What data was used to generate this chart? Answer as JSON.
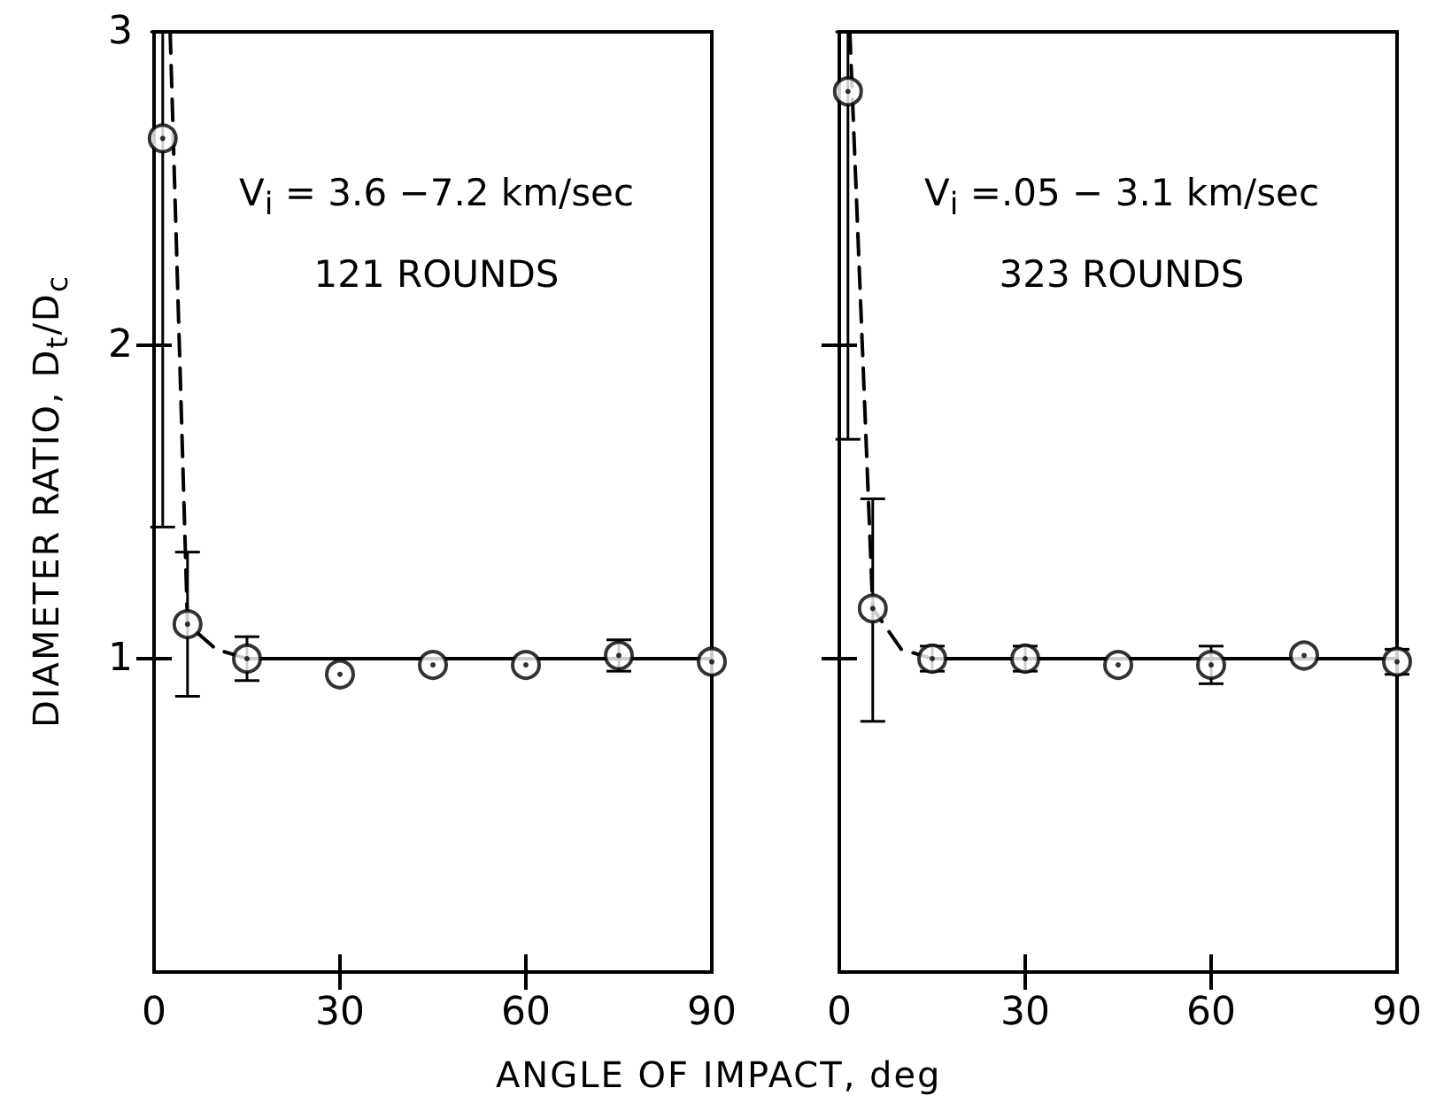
{
  "chart_data": [
    {
      "type": "scatter",
      "xlabel": "ANGLE OF IMPACT, deg",
      "ylabel": "DIAMETER RATIO, D$_{t}$/D$_{c}$",
      "annotations": [
        "V$_{i}$ = 3.6 −7.2 km/sec",
        "121 ROUNDS"
      ],
      "xlim": [
        0,
        90
      ],
      "xticks": [
        0,
        30,
        60,
        90
      ],
      "ylim": [
        0,
        3
      ],
      "yticks": [
        {
          "value": 0,
          "label": null
        },
        1,
        2,
        3
      ],
      "marker": "circle",
      "series": [
        {
          "type": "scatter",
          "color": "#000000",
          "x": [
            1.4,
            5.4,
            15,
            30,
            45,
            60,
            75,
            90
          ],
          "values": [
            2.66,
            1.11,
            1.0,
            0.95,
            0.98,
            0.98,
            1.01,
            0.99
          ],
          "errors": [
            [
              1.42,
              3
            ],
            [
              0.88,
              1.34
            ],
            [
              0.93,
              1.07
            ],
            null,
            null,
            null,
            [
              0.96,
              1.06
            ],
            null
          ]
        },
        {
          "type": "line",
          "line_style": "dashed",
          "color": "#000000",
          "x": [
            2.6,
            5.4,
            10,
            15
          ],
          "values": [
            3,
            1.11,
            1.03,
            1.0
          ]
        },
        {
          "type": "line",
          "line_style": "solid",
          "color": "#000000",
          "x": [
            15,
            90
          ],
          "values": [
            1.0,
            1.0
          ]
        }
      ]
    },
    {
      "type": "scatter",
      "annotations": [
        "V$_{i}$ =.05 − 3.1 km/sec",
        "323 ROUNDS"
      ],
      "xlim": [
        0,
        90
      ],
      "xticks": [
        0,
        30,
        60,
        90
      ],
      "ylim": [
        0,
        3
      ],
      "yticks": [
        {
          "value": 0,
          "label": null
        },
        1,
        2,
        3
      ],
      "marker": "circle",
      "tick_labels": "x",
      "series": [
        {
          "type": "scatter",
          "color": "#000000",
          "x": [
            1.4,
            5.4,
            15,
            30,
            45,
            60,
            75,
            90
          ],
          "values": [
            2.81,
            1.16,
            1.0,
            1.0,
            0.98,
            0.98,
            1.01,
            0.99
          ],
          "errors": [
            [
              1.7,
              3
            ],
            [
              0.8,
              1.51
            ],
            [
              0.96,
              1.04
            ],
            [
              0.96,
              1.04
            ],
            null,
            [
              0.92,
              1.04
            ],
            null,
            [
              0.95,
              1.03
            ]
          ]
        },
        {
          "type": "line",
          "line_style": "dashed",
          "color": "#000000",
          "x": [
            1.7,
            5.4,
            10,
            15
          ],
          "values": [
            3,
            1.16,
            1.03,
            1.0
          ]
        },
        {
          "type": "line",
          "line_style": "solid",
          "color": "#000000",
          "x": [
            15,
            90
          ],
          "values": [
            1.0,
            1.0
          ]
        }
      ]
    }
  ]
}
